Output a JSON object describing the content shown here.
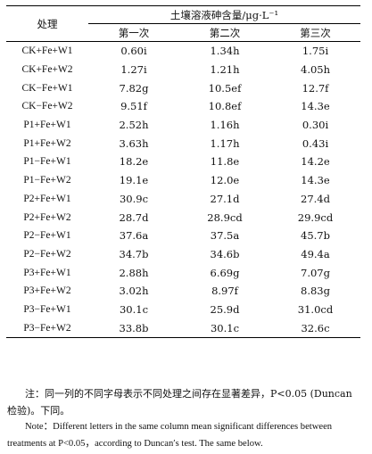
{
  "table": {
    "header": {
      "treatment": "处理",
      "group": "土壤溶液砷含量/μg·L⁻¹",
      "columns": [
        "第一次",
        "第二次",
        "第三次"
      ]
    },
    "rows": [
      {
        "treatment": "CK+Fe+W1",
        "values": [
          "0.60i",
          "1.34h",
          "1.75i"
        ]
      },
      {
        "treatment": "CK+Fe+W2",
        "values": [
          "1.27i",
          "1.21h",
          "4.05h"
        ]
      },
      {
        "treatment": "CK−Fe+W1",
        "values": [
          "7.82g",
          "10.5ef",
          "12.7f"
        ]
      },
      {
        "treatment": "CK−Fe+W2",
        "values": [
          "9.51f",
          "10.8ef",
          "14.3e"
        ]
      },
      {
        "treatment": "P1+Fe+W1",
        "values": [
          "2.52h",
          "1.16h",
          "0.30i"
        ]
      },
      {
        "treatment": "P1+Fe+W2",
        "values": [
          "3.63h",
          "1.17h",
          "0.43i"
        ]
      },
      {
        "treatment": "P1−Fe+W1",
        "values": [
          "18.2e",
          "11.8e",
          "14.2e"
        ]
      },
      {
        "treatment": "P1−Fe+W2",
        "values": [
          "19.1e",
          "12.0e",
          "14.3e"
        ]
      },
      {
        "treatment": "P2+Fe+W1",
        "values": [
          "30.9c",
          "27.1d",
          "27.4d"
        ]
      },
      {
        "treatment": "P2+Fe+W2",
        "values": [
          "28.7d",
          "28.9cd",
          "29.9cd"
        ]
      },
      {
        "treatment": "P2−Fe+W1",
        "values": [
          "37.6a",
          "37.5a",
          "45.7b"
        ]
      },
      {
        "treatment": "P2−Fe+W2",
        "values": [
          "34.7b",
          "34.6b",
          "49.4a"
        ]
      },
      {
        "treatment": "P3+Fe+W1",
        "values": [
          "2.88h",
          "6.69g",
          "7.07g"
        ]
      },
      {
        "treatment": "P3+Fe+W2",
        "values": [
          "3.02h",
          "8.97f",
          "8.83g"
        ]
      },
      {
        "treatment": "P3−Fe+W1",
        "values": [
          "30.1c",
          "25.9d",
          "31.0cd"
        ]
      },
      {
        "treatment": "P3−Fe+W2",
        "values": [
          "33.8b",
          "30.1c",
          "32.6c"
        ]
      }
    ]
  },
  "notes": {
    "cn": "注：同一列的不同字母表示不同处理之间存在显著差异，P<0.05 (Duncan 检验)。下同。",
    "en": "Note：Different letters in the same column mean significant differences between treatments at P<0.05，according to Duncan′s test. The same below."
  }
}
